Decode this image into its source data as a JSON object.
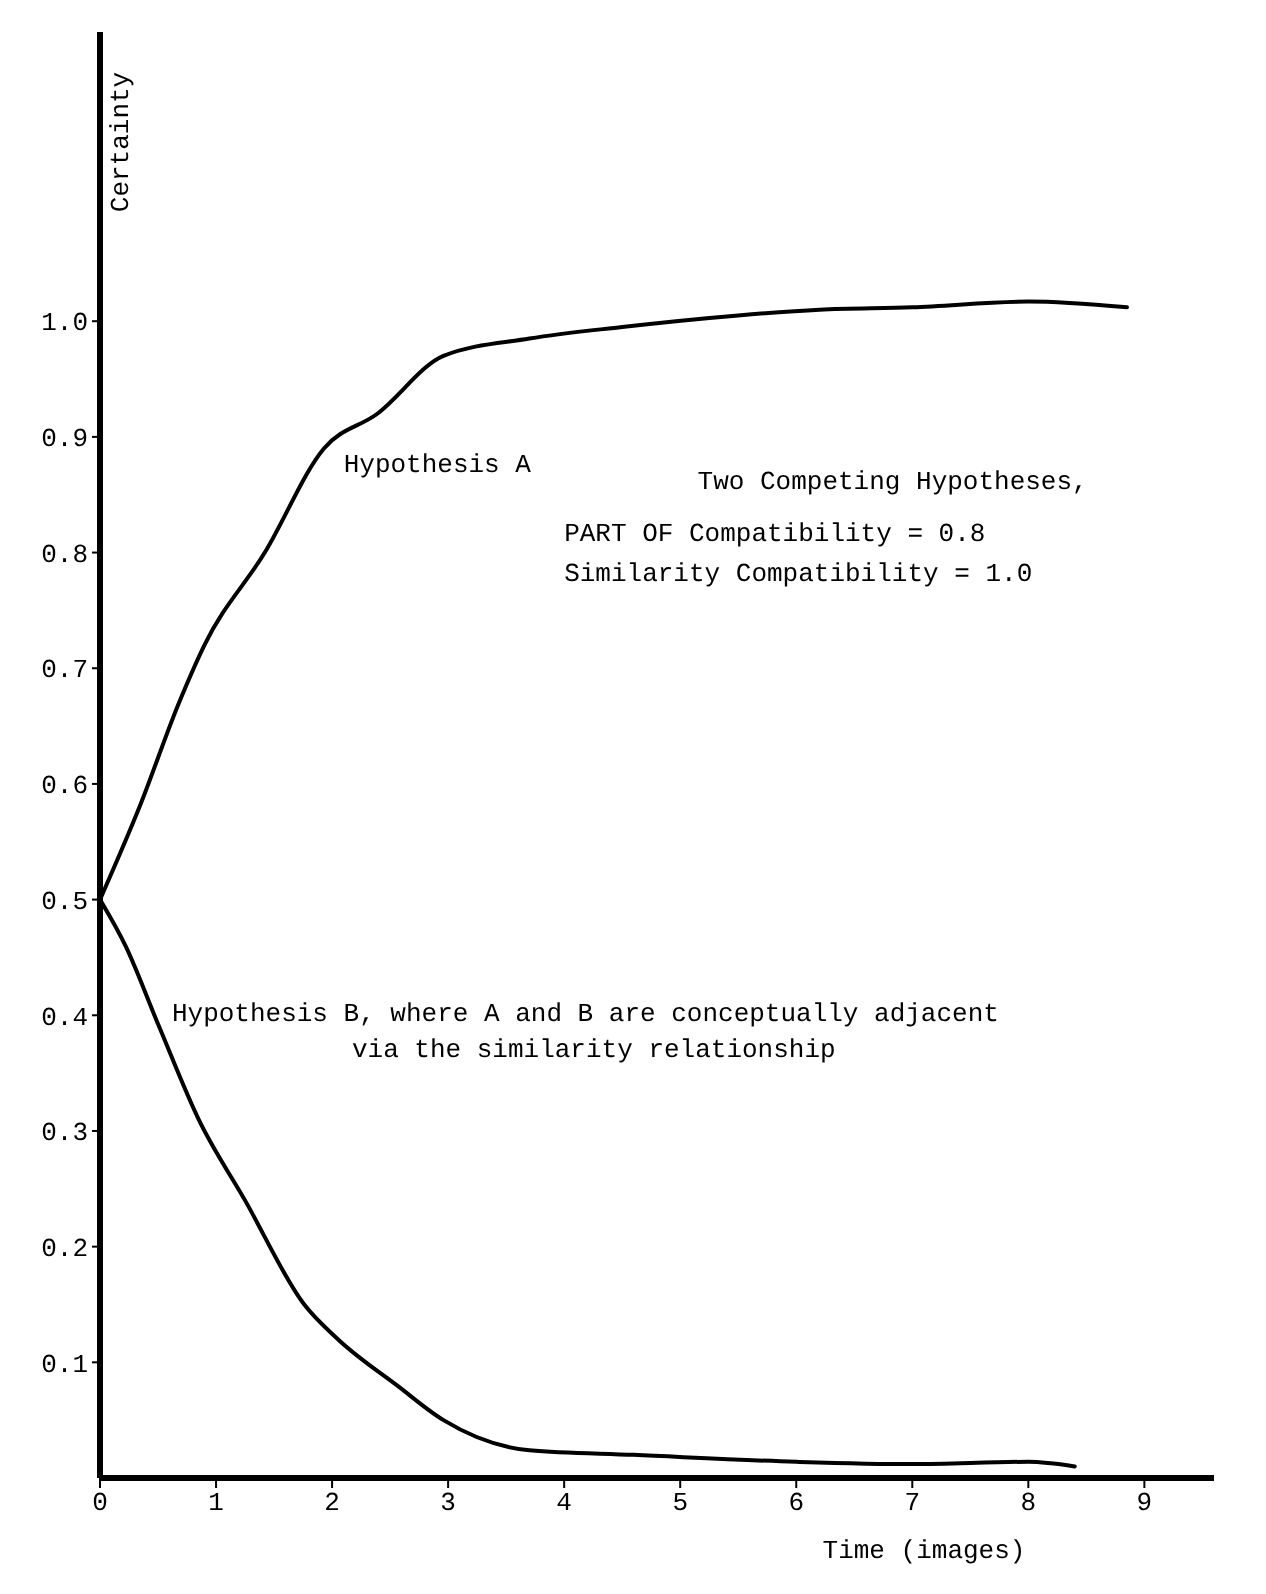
{
  "chart_data": {
    "type": "line",
    "xlabel": "Time (images)",
    "ylabel": "Certainty",
    "xlim": [
      0,
      9.6
    ],
    "ylim": [
      0,
      1.25
    ],
    "xticks": [
      0,
      1,
      2,
      3,
      4,
      5,
      6,
      7,
      8,
      9
    ],
    "yticks": [
      0.1,
      0.2,
      0.3,
      0.4,
      0.5,
      0.6,
      0.7,
      0.8,
      0.9,
      {
        "value": 1,
        "label": "1.0"
      }
    ],
    "series": [
      {
        "name": "Hypothesis A",
        "color": "#000000",
        "x": [
          0,
          0.34,
          0.68,
          0.9,
          1.42,
          1.93,
          2.39,
          2.96,
          3.7,
          4.5,
          5.5,
          6.2,
          7,
          8,
          8.85
        ],
        "values": [
          0.5,
          0.58,
          0.67,
          0.72,
          0.8,
          0.89,
          0.92,
          0.97,
          0.985,
          0.995,
          1.005,
          1.01,
          1.012,
          1.017,
          1.012
        ]
      },
      {
        "name": "Hypothesis B, where A and B are conceptually adjacent\nvia the similarity relationship",
        "color": "#000000",
        "x": [
          0,
          0.22,
          0.51,
          0.85,
          1.25,
          1.76,
          2.05,
          2.56,
          2.96,
          3.7,
          4.6,
          6,
          7,
          8,
          8.4
        ],
        "values": [
          0.5,
          0.46,
          0.39,
          0.31,
          0.24,
          0.15,
          0.12,
          0.08,
          0.05,
          0.024,
          0.02,
          0.014,
          0.012,
          0.014,
          0.01
        ]
      }
    ],
    "annotations": [
      "Two Competing Hypotheses,",
      "PART OF Compatibility = 0.8",
      "Similarity Compatibility = 1.0"
    ],
    "legend": false,
    "grid": false,
    "marker": "none",
    "line_style": "solid"
  }
}
